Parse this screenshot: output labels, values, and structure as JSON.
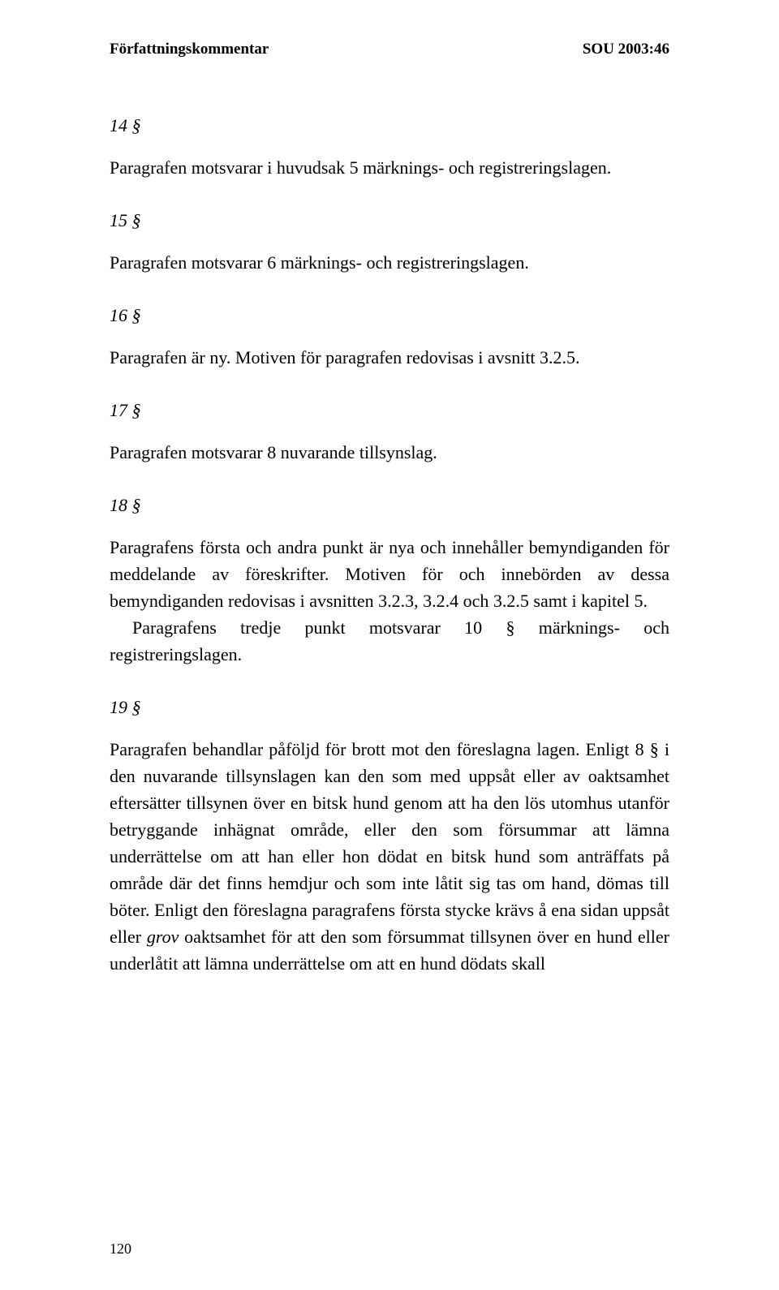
{
  "header": {
    "left": "Författningskommentar",
    "right": "SOU 2003:46"
  },
  "sections": {
    "s14": {
      "num": "14 §",
      "p1": "Paragrafen motsvarar i huvudsak 5 märknings- och registreringslagen."
    },
    "s15": {
      "num": "15 §",
      "p1": "Paragrafen motsvarar 6 märknings- och registreringslagen."
    },
    "s16": {
      "num": "16 §",
      "p1": "Paragrafen är ny. Motiven för paragrafen redovisas i avsnitt 3.2.5."
    },
    "s17": {
      "num": "17 §",
      "p1": "Paragrafen motsvarar 8 nuvarande tillsynslag."
    },
    "s18": {
      "num": "18 §",
      "p1": "Paragrafens första och andra punkt är nya och innehåller bemyndiganden för meddelande av föreskrifter. Motiven för och innebörden av dessa bemyndiganden redovisas i avsnitten 3.2.3, 3.2.4 och 3.2.5 samt i kapitel 5.",
      "p2": "Paragrafens tredje punkt motsvarar 10 § märknings- och registreringslagen."
    },
    "s19": {
      "num": "19 §",
      "p1a": "Paragrafen behandlar påföljd för brott mot den föreslagna lagen. Enligt 8 § i den nuvarande tillsynslagen kan den som med uppsåt eller av oaktsamhet eftersätter tillsynen över en bitsk hund genom att ha den lös utomhus utanför betryggande inhägnat område, eller den som försummar att lämna underrättelse om att han eller hon dödat en bitsk hund som anträffats på område där det finns hemdjur och som inte låtit sig tas om hand, dömas till böter. Enligt den föreslagna paragrafens första stycke krävs å ena sidan uppsåt eller ",
      "p1_italic": "grov",
      "p1b": " oaktsamhet för att den som försummat tillsynen över en hund eller underlåtit att lämna underrättelse om att en hund dödats skall"
    }
  },
  "pageNumber": "120"
}
